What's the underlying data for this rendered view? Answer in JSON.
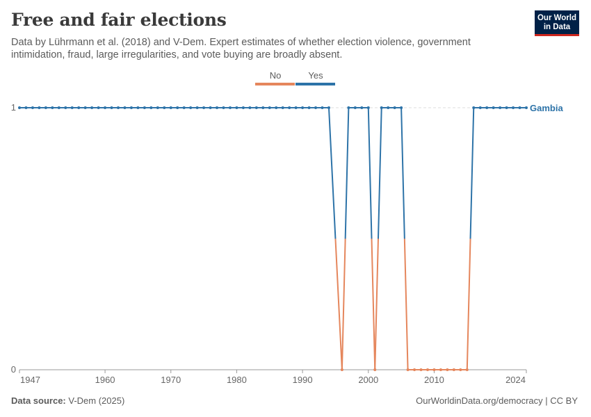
{
  "header": {
    "title": "Free and fair elections",
    "subtitle": "Data by Lührmann et al. (2018) and V-Dem. Expert estimates of whether election violence, government intimidation, fraud, large irregularities, and vote buying are broadly absent."
  },
  "logo": {
    "line1": "Our World",
    "line2": "in Data"
  },
  "footer": {
    "source_label": "Data source:",
    "source_value": "V-Dem (2025)",
    "url": "OurWorldinData.org/democracy | CC BY"
  },
  "colors": {
    "yes": "#2d73a8",
    "no": "#e5865c",
    "grid": "#dddddd",
    "axis": "#999999"
  },
  "chart_data": {
    "type": "line",
    "title": "Free and fair elections",
    "legend": {
      "placement": "top-center",
      "items": [
        {
          "label": "No",
          "color": "#e5865c"
        },
        {
          "label": "Yes",
          "color": "#2d73a8"
        }
      ]
    },
    "x_ticks": [
      1947,
      1960,
      1970,
      1980,
      1990,
      2000,
      2010,
      2024
    ],
    "y_ticks": [
      0,
      1
    ],
    "xlim": [
      1947,
      2024
    ],
    "ylim": [
      0,
      1
    ],
    "series": [
      {
        "name": "Gambia",
        "x": [
          1947,
          1948,
          1949,
          1950,
          1951,
          1952,
          1953,
          1954,
          1955,
          1956,
          1957,
          1958,
          1959,
          1960,
          1961,
          1962,
          1963,
          1964,
          1965,
          1966,
          1967,
          1968,
          1969,
          1970,
          1971,
          1972,
          1973,
          1974,
          1975,
          1976,
          1977,
          1978,
          1979,
          1980,
          1981,
          1982,
          1983,
          1984,
          1985,
          1986,
          1987,
          1988,
          1989,
          1990,
          1991,
          1992,
          1993,
          1994,
          1996,
          1997,
          1998,
          1999,
          2000,
          2001,
          2002,
          2003,
          2004,
          2005,
          2006,
          2007,
          2008,
          2009,
          2010,
          2011,
          2012,
          2013,
          2014,
          2015,
          2016,
          2017,
          2018,
          2019,
          2020,
          2021,
          2022,
          2023,
          2024
        ],
        "y": [
          1,
          1,
          1,
          1,
          1,
          1,
          1,
          1,
          1,
          1,
          1,
          1,
          1,
          1,
          1,
          1,
          1,
          1,
          1,
          1,
          1,
          1,
          1,
          1,
          1,
          1,
          1,
          1,
          1,
          1,
          1,
          1,
          1,
          1,
          1,
          1,
          1,
          1,
          1,
          1,
          1,
          1,
          1,
          1,
          1,
          1,
          1,
          1,
          0,
          1,
          1,
          1,
          1,
          0,
          1,
          1,
          1,
          1,
          0,
          0,
          0,
          0,
          0,
          0,
          0,
          0,
          0,
          0,
          1,
          1,
          1,
          1,
          1,
          1,
          1,
          1,
          1
        ]
      }
    ]
  }
}
